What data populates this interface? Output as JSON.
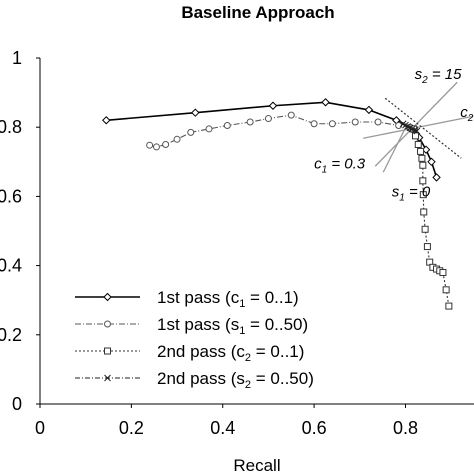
{
  "chart_data": {
    "type": "line",
    "title": "Baseline Approach",
    "xlabel": "Recall",
    "ylabel": "",
    "xlim": [
      0,
      0.95
    ],
    "ylim": [
      0,
      1
    ],
    "x_ticks": [
      "0",
      "0.2",
      "0.4",
      "0.6",
      "0.8"
    ],
    "x_tick_values": [
      0,
      0.2,
      0.4,
      0.6,
      0.8
    ],
    "y_ticks": [
      "0",
      "0.2",
      "0.4",
      "0.6",
      "0.8",
      "1"
    ],
    "y_tick_values": [
      0,
      0.2,
      0.4,
      0.6,
      0.8,
      1
    ],
    "grid": false,
    "legend_position": "bottom-left",
    "annotations": [
      {
        "base": "s",
        "sub": "2",
        "rest": " = 15",
        "x": 0.82,
        "y": 0.94
      },
      {
        "base": "c",
        "sub": "2",
        "rest": "",
        "x": 0.92,
        "y": 0.83
      },
      {
        "base": "c",
        "sub": "1",
        "rest": " = 0.3",
        "x": 0.6,
        "y": 0.68
      },
      {
        "base": "s",
        "sub": "1",
        "rest": " = 0",
        "x": 0.77,
        "y": 0.6
      }
    ],
    "series": [
      {
        "name": "1st pass (c1 = 0..1)",
        "legend_parts": [
          "1st pass (c",
          "1",
          " = 0..1)"
        ],
        "marker": "diamond",
        "dash": "none",
        "x": [
          0.145,
          0.34,
          0.51,
          0.625,
          0.72,
          0.78,
          0.81,
          0.83,
          0.845,
          0.857,
          0.868
        ],
        "y": [
          0.82,
          0.842,
          0.862,
          0.872,
          0.85,
          0.82,
          0.797,
          0.77,
          0.735,
          0.7,
          0.655
        ]
      },
      {
        "name": "1st pass (s1 = 0..50)",
        "legend_parts": [
          "1st pass (s",
          "1",
          " = 0..50)"
        ],
        "marker": "circle",
        "dash": "6 2 1 2",
        "x": [
          0.24,
          0.255,
          0.275,
          0.3,
          0.33,
          0.37,
          0.41,
          0.46,
          0.5,
          0.55,
          0.6,
          0.64,
          0.69,
          0.74,
          0.785,
          0.81,
          0.82
        ],
        "y": [
          0.748,
          0.743,
          0.75,
          0.765,
          0.785,
          0.795,
          0.805,
          0.815,
          0.825,
          0.835,
          0.81,
          0.81,
          0.815,
          0.815,
          0.805,
          0.8,
          0.795
        ]
      },
      {
        "name": "2nd pass (c2 = 0..1)",
        "legend_parts": [
          "2nd pass (c",
          "2",
          " = 0..1)"
        ],
        "marker": "square",
        "dash": "2 2",
        "x": [
          0.818,
          0.822,
          0.828,
          0.833,
          0.836,
          0.838,
          0.838,
          0.839,
          0.84,
          0.843,
          0.848,
          0.853,
          0.86,
          0.868,
          0.875,
          0.882,
          0.889,
          0.895
        ],
        "y": [
          0.795,
          0.775,
          0.75,
          0.73,
          0.71,
          0.69,
          0.645,
          0.605,
          0.555,
          0.505,
          0.455,
          0.41,
          0.395,
          0.39,
          0.385,
          0.38,
          0.33,
          0.283
        ]
      },
      {
        "name": "2nd pass (s2 = 0..50)",
        "legend_parts": [
          "2nd pass (s",
          "2",
          " = 0..50)"
        ],
        "marker": "x",
        "dash": "5 2 1 2",
        "x": [
          0.795,
          0.8,
          0.805,
          0.81,
          0.815,
          0.82,
          0.825
        ],
        "y": [
          0.81,
          0.806,
          0.802,
          0.798,
          0.795,
          0.792,
          0.789
        ]
      }
    ]
  }
}
